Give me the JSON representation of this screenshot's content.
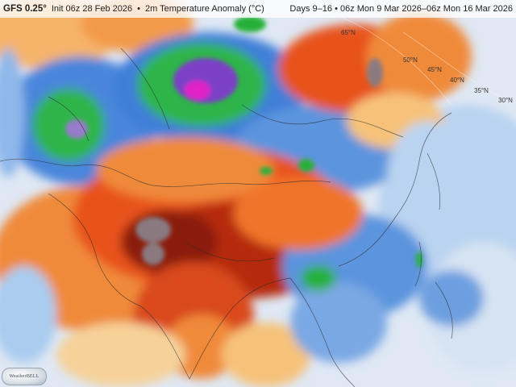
{
  "header": {
    "model": "GFS 0.25°",
    "init": "Init 06z 28 Feb 2026",
    "separator": "•",
    "product": "2m Temperature Anomaly (°C)",
    "valid": "Days 9–16 • 06z Mon 9 Mar 2026–06z Mon 16 Mar 2026"
  },
  "lat_labels": [
    "65°N",
    "50°N",
    "45°N",
    "40°N",
    "35°N",
    "30°N"
  ],
  "colors": {
    "extreme_warm": "#8a7a80",
    "very_warm": "#8b1a0e",
    "warm": "#cc3a14",
    "mild_warm": "#f08a3a",
    "slight_warm": "#f6c27a",
    "near_zero": "#f2f0f0",
    "slight_cold": "#a9ccef",
    "cold": "#3f7fd8",
    "very_cold": "#27b03a",
    "extreme_cold": "#7b3fc6",
    "core_cold": "#e020c8"
  },
  "logo": {
    "text": "WeatherBELL"
  }
}
